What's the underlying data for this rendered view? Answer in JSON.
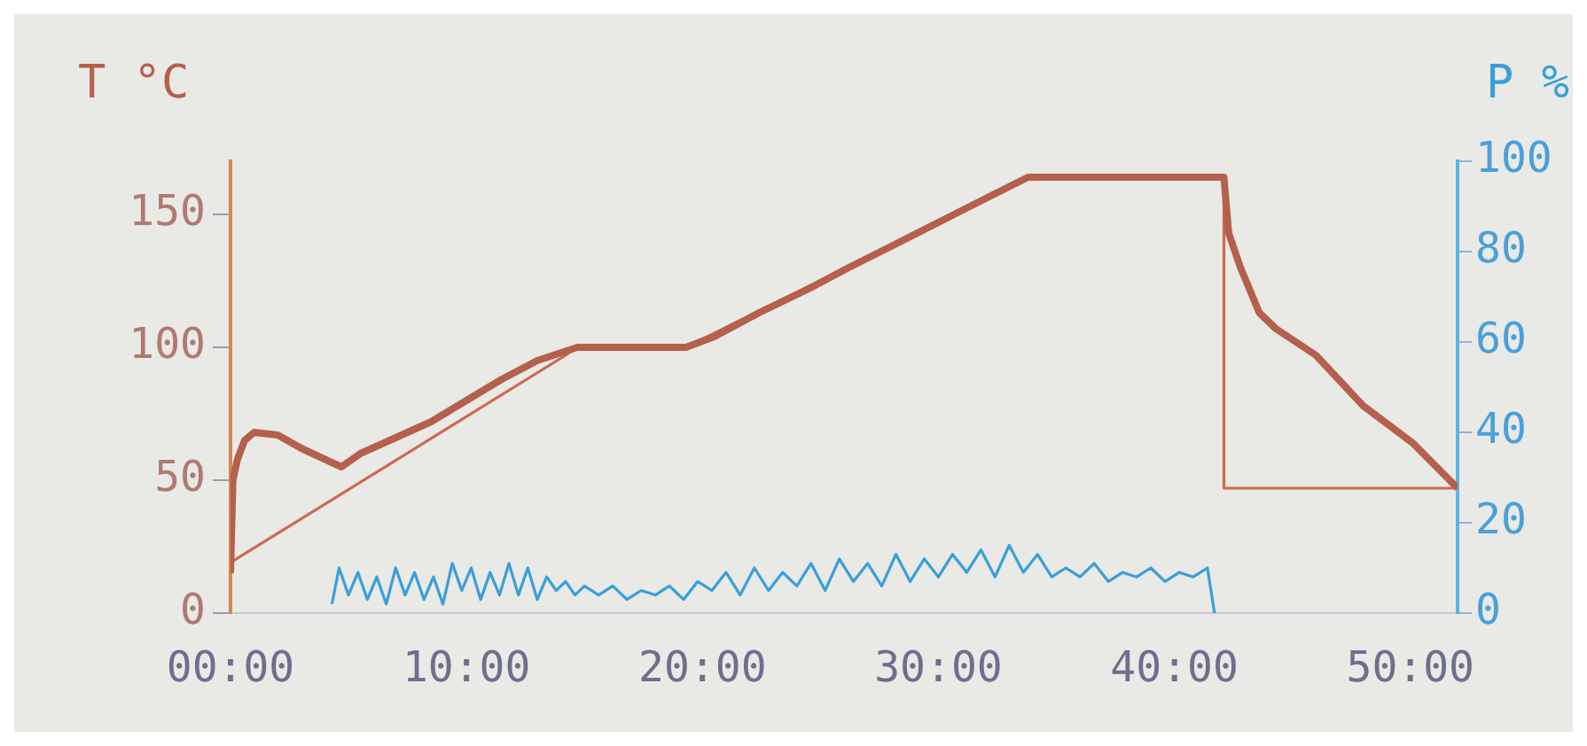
{
  "chart_data": {
    "type": "line",
    "ylabel": "T °C",
    "y2label": "P %",
    "xlim": [
      0,
      52
    ],
    "xticks": [
      {
        "value": 0,
        "label": "00:00"
      },
      {
        "value": 10,
        "label": "10:00"
      },
      {
        "value": 20,
        "label": "20:00"
      },
      {
        "value": 30,
        "label": "30:00"
      },
      {
        "value": 40,
        "label": "40:00"
      },
      {
        "value": 50,
        "label": "50:00"
      }
    ],
    "ylim": [
      0,
      170
    ],
    "yticks": [
      0,
      50,
      100,
      150
    ],
    "y2lim": [
      0,
      100
    ],
    "y2ticks": [
      0,
      20,
      40,
      60,
      80,
      100
    ],
    "grid": false,
    "legend": false,
    "marker": "none",
    "line_style": "solid",
    "series": [
      {
        "color": "#b4604c",
        "x": [
          0,
          0.1,
          0.3,
          0.6,
          1.0,
          2.0,
          3.0,
          4.7,
          5.5,
          6.5,
          7.5,
          8.5,
          10,
          11.5,
          13,
          14.7,
          19.3,
          20.5,
          22.4,
          24.5,
          26.2,
          28,
          30,
          32,
          33.8,
          42.1,
          42.3,
          42.8,
          43.6,
          44.3,
          46,
          48,
          50.1,
          52
        ],
        "values": [
          15,
          50,
          58,
          65,
          68,
          67,
          62,
          55,
          60,
          64,
          68,
          72,
          80,
          88,
          95,
          100,
          100,
          104,
          113,
          122,
          130,
          138,
          147,
          156,
          164,
          164,
          143,
          130,
          113,
          107,
          97,
          78,
          64,
          47
        ]
      },
      {
        "color": "#cc6a50",
        "x": [
          0,
          14.2,
          14.7,
          19.3,
          33.8,
          42.1,
          42.1,
          52
        ],
        "values": [
          19,
          97,
          100,
          100,
          164,
          164,
          47,
          47
        ]
      },
      {
        "color": "#3a9fd8",
        "axis": "y2",
        "x": [
          4.3,
          4.6,
          5.0,
          5.4,
          5.8,
          6.2,
          6.6,
          7.0,
          7.4,
          7.8,
          8.2,
          8.6,
          9.0,
          9.4,
          9.8,
          10.2,
          10.6,
          11.0,
          11.4,
          11.8,
          12.2,
          12.6,
          13.0,
          13.4,
          13.8,
          14.2,
          14.6,
          15.0,
          15.6,
          16.2,
          16.8,
          17.4,
          18.0,
          18.6,
          19.2,
          19.8,
          20.4,
          21.0,
          21.6,
          22.2,
          22.8,
          23.4,
          24.0,
          24.6,
          25.2,
          25.8,
          26.4,
          27.0,
          27.6,
          28.2,
          28.8,
          29.4,
          30.0,
          30.6,
          31.2,
          31.8,
          32.4,
          33.0,
          33.6,
          34.2,
          34.8,
          35.4,
          36.0,
          36.6,
          37.2,
          37.8,
          38.4,
          39.0,
          39.6,
          40.2,
          40.8,
          41.4,
          41.7
        ],
        "values": [
          2,
          10,
          4,
          9,
          3,
          8,
          2,
          10,
          4,
          9,
          3,
          8,
          2,
          11,
          5,
          10,
          3,
          9,
          4,
          11,
          4,
          10,
          3,
          8,
          5,
          7,
          4,
          6,
          4,
          6,
          3,
          5,
          4,
          6,
          3,
          7,
          5,
          9,
          4,
          10,
          5,
          9,
          6,
          11,
          5,
          12,
          7,
          11,
          6,
          13,
          7,
          12,
          8,
          13,
          9,
          14,
          8,
          15,
          9,
          13,
          8,
          10,
          8,
          11,
          7,
          9,
          8,
          10,
          7,
          9,
          8,
          10,
          0
        ]
      }
    ]
  }
}
